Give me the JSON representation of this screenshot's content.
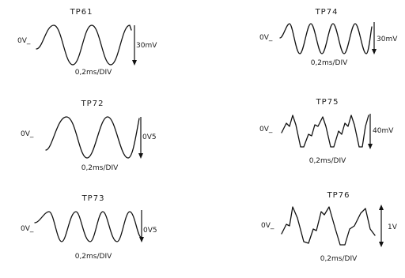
{
  "waveforms": [
    {
      "id": "tp61",
      "label": "TP61",
      "zero": "0V_",
      "amplitude": "30mV",
      "timebase": "0,2ms/DIV"
    },
    {
      "id": "tp72",
      "label": "TP72",
      "zero": "0V_",
      "amplitude": "0V5",
      "timebase": "0,2ms/DIV"
    },
    {
      "id": "tp73",
      "label": "TP73",
      "zero": "0V_",
      "amplitude": "0V5",
      "timebase": "0,2ms/DIV"
    },
    {
      "id": "tp74",
      "label": "TP74",
      "zero": "0V_",
      "amplitude": "30mV",
      "timebase": "0,2ms/DIV"
    },
    {
      "id": "tp75",
      "label": "TP75",
      "zero": "0V_",
      "amplitude": "40mV",
      "timebase": "0,2ms/DIV"
    },
    {
      "id": "tp76",
      "label": "TP76",
      "zero": "0V_",
      "amplitude": "1V",
      "timebase": "0,2ms/DIV"
    }
  ]
}
